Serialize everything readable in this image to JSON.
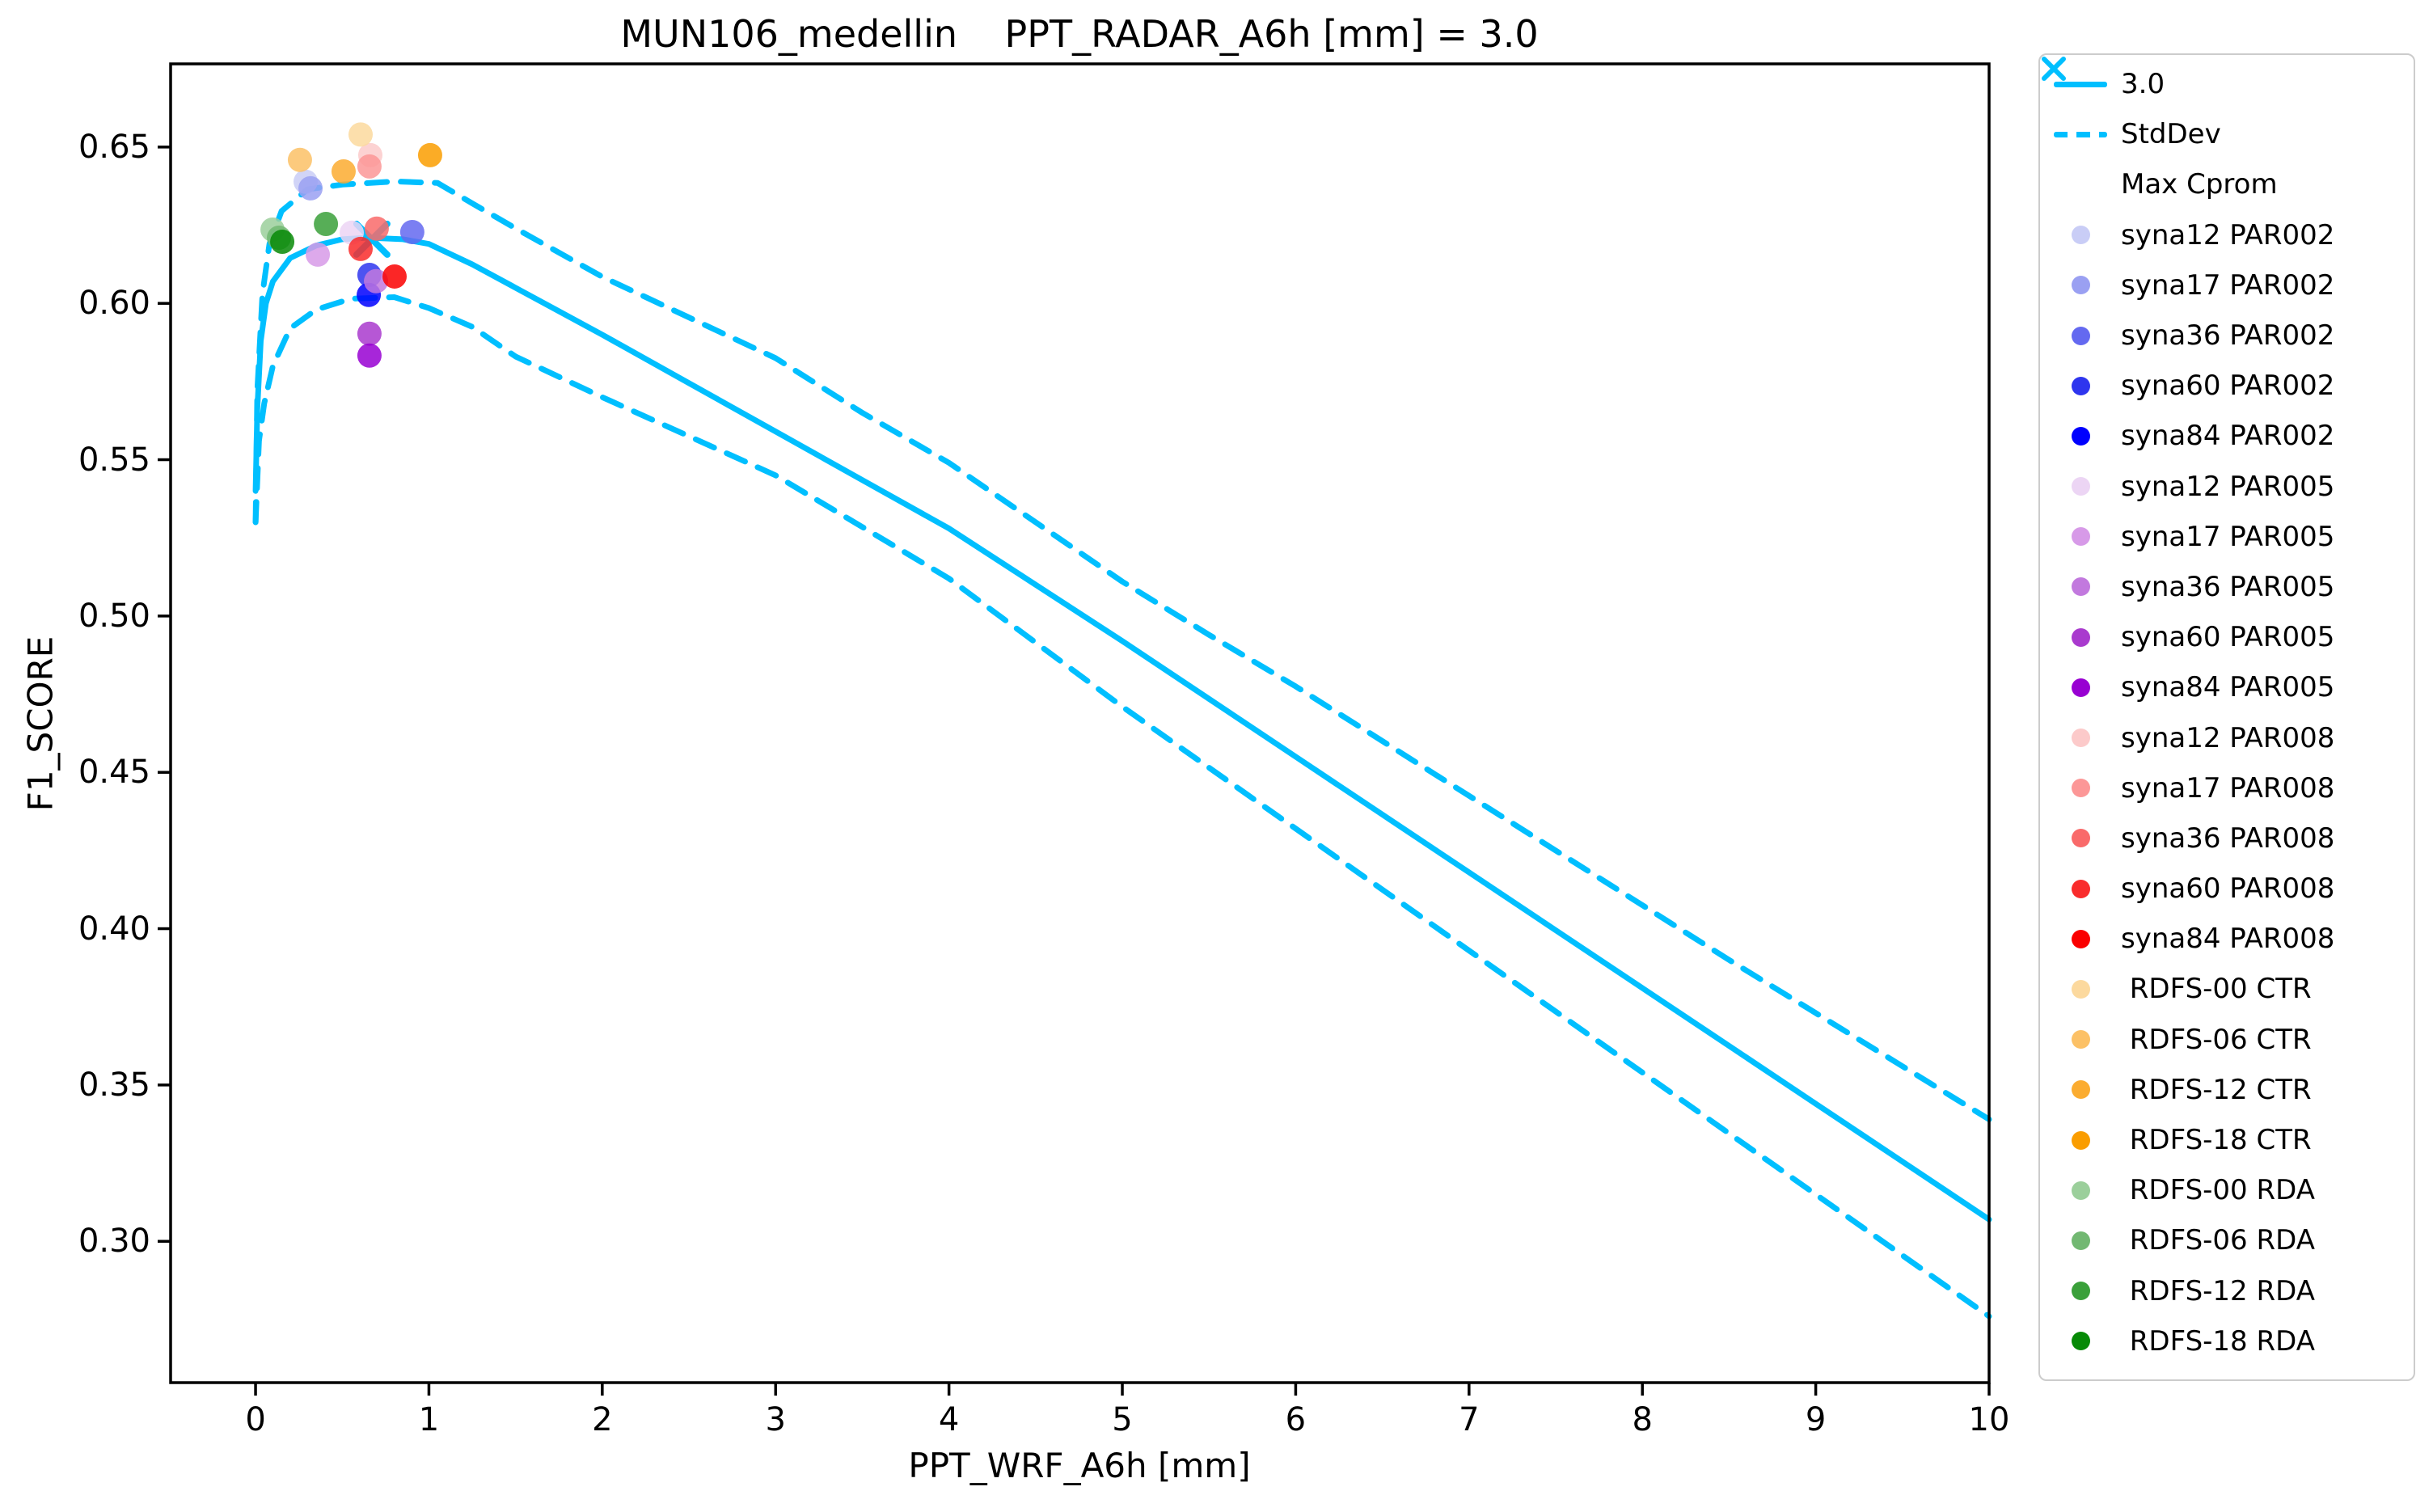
{
  "title": "MUN106_medellin    PPT_RADAR_A6h [mm] = 3.0",
  "chart_data": {
    "type": "line",
    "title": "MUN106_medellin    PPT_RADAR_A6h [mm] = 3.0",
    "xlabel": "PPT_WRF_A6h [mm]",
    "ylabel": "F1_SCORE",
    "xlim": [
      -0.49,
      10.0
    ],
    "ylim": [
      0.2548,
      0.6766
    ],
    "grid": false,
    "legend_position": "outside-right",
    "accent_color": "#00BFFF",
    "xticks": {
      "values": [
        0,
        1,
        2,
        3,
        4,
        5,
        6,
        7,
        8,
        9,
        10
      ],
      "labels": [
        "0",
        "1",
        "2",
        "3",
        "4",
        "5",
        "6",
        "7",
        "8",
        "9",
        "10"
      ]
    },
    "yticks": {
      "values": [
        0.3,
        0.35,
        0.4,
        0.45,
        0.5,
        0.55,
        0.6,
        0.65
      ],
      "labels": [
        "0.30",
        "0.35",
        "0.40",
        "0.45",
        "0.50",
        "0.55",
        "0.60",
        "0.65"
      ]
    },
    "series": [
      {
        "name": "3.0",
        "style": "solid",
        "color": "#00BFFF",
        "width": 7,
        "points": [
          [
            0,
            0.54
          ],
          [
            0.01,
            0.566
          ],
          [
            0.03,
            0.588
          ],
          [
            0.06,
            0.6
          ],
          [
            0.1,
            0.607
          ],
          [
            0.2,
            0.6145
          ],
          [
            0.35,
            0.6185
          ],
          [
            0.5,
            0.6205
          ],
          [
            0.65,
            0.621
          ],
          [
            0.85,
            0.6205
          ],
          [
            1.0,
            0.619
          ],
          [
            1.25,
            0.6125
          ],
          [
            1.5,
            0.605
          ],
          [
            2.0,
            0.59
          ],
          [
            2.5,
            0.5745
          ],
          [
            3.0,
            0.559
          ],
          [
            3.5,
            0.5435
          ],
          [
            4.0,
            0.528
          ],
          [
            4.5,
            0.51
          ],
          [
            5.0,
            0.492
          ],
          [
            5.5,
            0.4735
          ],
          [
            6.0,
            0.455
          ],
          [
            6.5,
            0.4365
          ],
          [
            7.0,
            0.418
          ],
          [
            7.5,
            0.3995
          ],
          [
            8.0,
            0.381
          ],
          [
            8.5,
            0.3625
          ],
          [
            9.0,
            0.344
          ],
          [
            9.5,
            0.3255
          ],
          [
            10.0,
            0.307
          ]
        ]
      },
      {
        "name": "StdDev upper",
        "style": "dashed",
        "color": "#00BFFF",
        "width": 7,
        "points": [
          [
            0,
            0.53
          ],
          [
            0.01,
            0.572
          ],
          [
            0.04,
            0.603
          ],
          [
            0.08,
            0.619
          ],
          [
            0.15,
            0.6295
          ],
          [
            0.3,
            0.6365
          ],
          [
            0.5,
            0.638
          ],
          [
            0.8,
            0.639
          ],
          [
            1.05,
            0.6385
          ],
          [
            1.25,
            0.632
          ],
          [
            1.5,
            0.624
          ],
          [
            2.0,
            0.6085
          ],
          [
            2.5,
            0.5955
          ],
          [
            3.0,
            0.5825
          ],
          [
            3.5,
            0.565
          ],
          [
            4.0,
            0.549
          ],
          [
            4.5,
            0.53
          ],
          [
            5.0,
            0.511
          ],
          [
            5.5,
            0.494
          ],
          [
            6.0,
            0.4775
          ],
          [
            6.5,
            0.46
          ],
          [
            7.0,
            0.4425
          ],
          [
            7.5,
            0.425
          ],
          [
            8.0,
            0.4075
          ],
          [
            8.5,
            0.39
          ],
          [
            9.0,
            0.373
          ],
          [
            9.5,
            0.356
          ],
          [
            10.0,
            0.339
          ]
        ]
      },
      {
        "name": "StdDev lower",
        "style": "dashed",
        "color": "#00BFFF",
        "width": 7,
        "points": [
          [
            0,
            0.53
          ],
          [
            0.02,
            0.556
          ],
          [
            0.05,
            0.568
          ],
          [
            0.1,
            0.58
          ],
          [
            0.2,
            0.592
          ],
          [
            0.35,
            0.598
          ],
          [
            0.55,
            0.6015
          ],
          [
            0.8,
            0.602
          ],
          [
            1.0,
            0.5985
          ],
          [
            1.25,
            0.5925
          ],
          [
            1.5,
            0.583
          ],
          [
            2.0,
            0.57
          ],
          [
            2.5,
            0.5575
          ],
          [
            3.0,
            0.545
          ],
          [
            3.5,
            0.5285
          ],
          [
            4.0,
            0.512
          ],
          [
            4.5,
            0.4915
          ],
          [
            5.0,
            0.471
          ],
          [
            5.5,
            0.4515
          ],
          [
            6.0,
            0.432
          ],
          [
            6.5,
            0.4125
          ],
          [
            7.0,
            0.393
          ],
          [
            7.5,
            0.3735
          ],
          [
            8.0,
            0.354
          ],
          [
            8.5,
            0.3345
          ],
          [
            9.0,
            0.315
          ],
          [
            9.5,
            0.2955
          ],
          [
            10.0,
            0.276
          ]
        ]
      }
    ],
    "max_cprom": {
      "label": "Max Cprom",
      "x": 0.671,
      "y": 0.6205,
      "color": "#00BFFF"
    },
    "scatter": [
      {
        "label": "syna12 PAR002",
        "color": "#c9cdf6",
        "x": 0.289,
        "y": 0.6389
      },
      {
        "label": "syna17 PAR002",
        "color": "#9aa0f2",
        "x": 0.317,
        "y": 0.6368
      },
      {
        "label": "syna36 PAR002",
        "color": "#6469f0",
        "x": 0.904,
        "y": 0.6228
      },
      {
        "label": "syna60 PAR002",
        "color": "#2e35ee",
        "x": 0.657,
        "y": 0.6091
      },
      {
        "label": "syna84 PAR002",
        "color": "#0000fe",
        "x": 0.653,
        "y": 0.6027
      },
      {
        "label": "syna12 PAR005",
        "color": "#ecd5f4",
        "x": 0.555,
        "y": 0.6226
      },
      {
        "label": "syna17 PAR005",
        "color": "#d79ae8",
        "x": 0.359,
        "y": 0.6156
      },
      {
        "label": "syna36 PAR005",
        "color": "#c279de",
        "x": 0.695,
        "y": 0.6071
      },
      {
        "label": "syna60 PAR005",
        "color": "#a93ace",
        "x": 0.657,
        "y": 0.5903
      },
      {
        "label": "syna84 PAR005",
        "color": "#9800d2",
        "x": 0.657,
        "y": 0.5833
      },
      {
        "label": "syna12 PAR008",
        "color": "#fccaca",
        "x": 0.662,
        "y": 0.6474
      },
      {
        "label": "syna17 PAR008",
        "color": "#fc9797",
        "x": 0.657,
        "y": 0.6438
      },
      {
        "label": "syna36 PAR008",
        "color": "#f96a6a",
        "x": 0.699,
        "y": 0.6239
      },
      {
        "label": "syna60 PAR008",
        "color": "#f92c2c",
        "x": 0.606,
        "y": 0.6174
      },
      {
        "label": "syna84 PAR008",
        "color": "#fa0000",
        "x": 0.802,
        "y": 0.6086
      },
      {
        "label": "RDFS-00 CTR",
        "color": "#fcd99e",
        "x": 0.606,
        "y": 0.654
      },
      {
        "label": "RDFS-06 CTR",
        "color": "#fcc166",
        "x": 0.256,
        "y": 0.6459
      },
      {
        "label": "RDFS-12 CTR",
        "color": "#fbac30",
        "x": 0.508,
        "y": 0.6422
      },
      {
        "label": "RDFS-18 CTR",
        "color": "#fa9d00",
        "x": 1.007,
        "y": 0.6474
      },
      {
        "label": "RDFS-00 RDA",
        "color": "#9bcf9b",
        "x": 0.098,
        "y": 0.6236
      },
      {
        "label": "RDFS-06 RDA",
        "color": "#72b872",
        "x": 0.135,
        "y": 0.621
      },
      {
        "label": "RDFS-12 RDA",
        "color": "#3aa03a",
        "x": 0.406,
        "y": 0.6254
      },
      {
        "label": "RDFS-18 RDA",
        "color": "#078a07",
        "x": 0.154,
        "y": 0.6197
      }
    ]
  },
  "legend": {
    "items": [
      {
        "label": "3.0",
        "marker": "line",
        "color": "#00BFFF"
      },
      {
        "label": "StdDev",
        "marker": "dashed",
        "color": "#00BFFF"
      },
      {
        "label": "Max Cprom",
        "marker": "cross",
        "color": "#00BFFF"
      },
      {
        "label": "syna12 PAR002",
        "marker": "dot",
        "color": "#c9cdf6"
      },
      {
        "label": "syna17 PAR002",
        "marker": "dot",
        "color": "#9aa0f2"
      },
      {
        "label": "syna36 PAR002",
        "marker": "dot",
        "color": "#6469f0"
      },
      {
        "label": "syna60 PAR002",
        "marker": "dot",
        "color": "#2e35ee"
      },
      {
        "label": "syna84 PAR002",
        "marker": "dot",
        "color": "#0000fe"
      },
      {
        "label": "syna12 PAR005",
        "marker": "dot",
        "color": "#ecd5f4"
      },
      {
        "label": "syna17 PAR005",
        "marker": "dot",
        "color": "#d79ae8"
      },
      {
        "label": "syna36 PAR005",
        "marker": "dot",
        "color": "#c279de"
      },
      {
        "label": "syna60 PAR005",
        "marker": "dot",
        "color": "#a93ace"
      },
      {
        "label": "syna84 PAR005",
        "marker": "dot",
        "color": "#9800d2"
      },
      {
        "label": "syna12 PAR008",
        "marker": "dot",
        "color": "#fccaca"
      },
      {
        "label": "syna17 PAR008",
        "marker": "dot",
        "color": "#fc9797"
      },
      {
        "label": "syna36 PAR008",
        "marker": "dot",
        "color": "#f96a6a"
      },
      {
        "label": "syna60 PAR008",
        "marker": "dot",
        "color": "#f92c2c"
      },
      {
        "label": "syna84 PAR008",
        "marker": "dot",
        "color": "#fa0000"
      },
      {
        "label": " RDFS-00 CTR",
        "marker": "dot",
        "color": "#fcd99e"
      },
      {
        "label": " RDFS-06 CTR",
        "marker": "dot",
        "color": "#fcc166"
      },
      {
        "label": " RDFS-12 CTR",
        "marker": "dot",
        "color": "#fbac30"
      },
      {
        "label": " RDFS-18 CTR",
        "marker": "dot",
        "color": "#fa9d00"
      },
      {
        "label": " RDFS-00 RDA",
        "marker": "dot",
        "color": "#9bcf9b"
      },
      {
        "label": " RDFS-06 RDA",
        "marker": "dot",
        "color": "#72b872"
      },
      {
        "label": " RDFS-12 RDA",
        "marker": "dot",
        "color": "#3aa03a"
      },
      {
        "label": " RDFS-18 RDA",
        "marker": "dot",
        "color": "#078a07"
      }
    ]
  }
}
